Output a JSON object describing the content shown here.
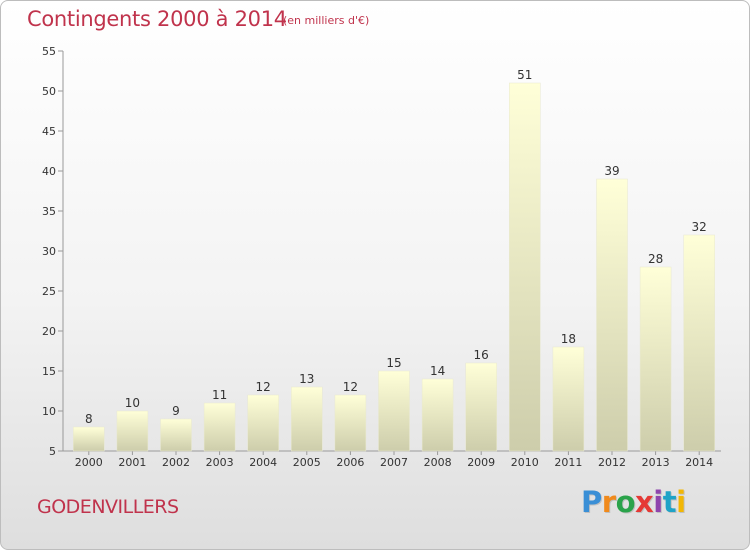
{
  "header": {
    "title": "Contingents 2000 à 2014",
    "subtitle": "(en milliers d'€)"
  },
  "footer": {
    "commune": "GODENVILLERS",
    "brand": "Proxiti",
    "brand_colors": [
      "#3a8fd6",
      "#f08a1c",
      "#2aa34a",
      "#e53935",
      "#8e44ad",
      "#1fa3c7",
      "#f2b705"
    ]
  },
  "colors": {
    "bar_top": "#ffffd8",
    "bar_bottom": "#cdcdab",
    "title": "#c0334c"
  },
  "chart_data": {
    "type": "bar",
    "title": "Contingents 2000 à 2014",
    "subtitle": "(en milliers d'€)",
    "xlabel": "",
    "ylabel": "",
    "categories": [
      "2000",
      "2001",
      "2002",
      "2003",
      "2004",
      "2005",
      "2006",
      "2007",
      "2008",
      "2009",
      "2010",
      "2011",
      "2012",
      "2013",
      "2014"
    ],
    "values": [
      8,
      10,
      9,
      11,
      12,
      13,
      12,
      15,
      14,
      16,
      51,
      18,
      39,
      28,
      32
    ],
    "ylim": [
      5,
      55
    ],
    "yticks": [
      5,
      10,
      15,
      20,
      25,
      30,
      35,
      40,
      45,
      50,
      55
    ],
    "grid": false,
    "data_labels": true
  }
}
